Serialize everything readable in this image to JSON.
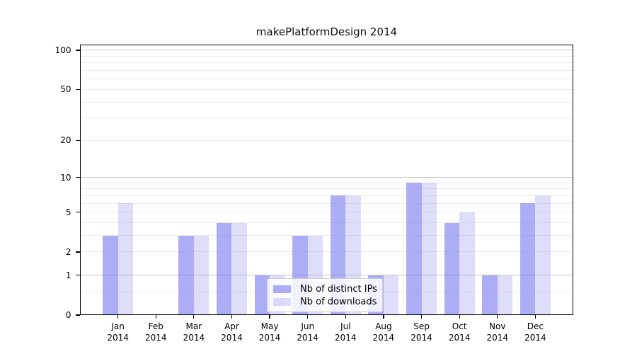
{
  "chart_data": {
    "type": "bar",
    "title": "makePlatformDesign 2014",
    "categories": [
      "Jan 2014",
      "Feb 2014",
      "Mar 2014",
      "Apr 2014",
      "May 2014",
      "Jun 2014",
      "Jul 2014",
      "Aug 2014",
      "Sep 2014",
      "Oct 2014",
      "Nov 2014",
      "Dec 2014"
    ],
    "month_labels": [
      "Jan",
      "Feb",
      "Mar",
      "Apr",
      "May",
      "Jun",
      "Jul",
      "Aug",
      "Sep",
      "Oct",
      "Nov",
      "Dec"
    ],
    "year_label": "2014",
    "series": [
      {
        "name": "Nb of distinct IPs",
        "color": "rgba(123,123,240,0.62)",
        "values": [
          3,
          0,
          3,
          4,
          1,
          3,
          7,
          1,
          9,
          4,
          1,
          6
        ]
      },
      {
        "name": "Nb of downloads",
        "color": "rgba(123,123,240,0.25)",
        "values": [
          6,
          0,
          3,
          4,
          1,
          3,
          7,
          1,
          9,
          5,
          1,
          7
        ]
      }
    ],
    "yscale": "log1p",
    "ylim_top": 110,
    "ytick_values": [
      0,
      1,
      2,
      5,
      10,
      20,
      50,
      100
    ],
    "ytick_labels": [
      "0",
      "1",
      "2",
      "5",
      "10",
      "20",
      "50",
      "100"
    ],
    "major_gridlines": [
      1,
      10,
      100
    ],
    "minor_gridlines": [
      0.5,
      2,
      3,
      4,
      5,
      6,
      7,
      8,
      9,
      20,
      30,
      40,
      50,
      60,
      70,
      80,
      90
    ],
    "grid": true,
    "legend_position": "lower center",
    "colors": {
      "bar_dark": "rgba(123,123,240,0.62)",
      "bar_light": "rgba(123,123,240,0.25)",
      "major_grid": "#c8c8c8",
      "minor_grid": "#ebebeb",
      "axis": "#000000"
    }
  }
}
